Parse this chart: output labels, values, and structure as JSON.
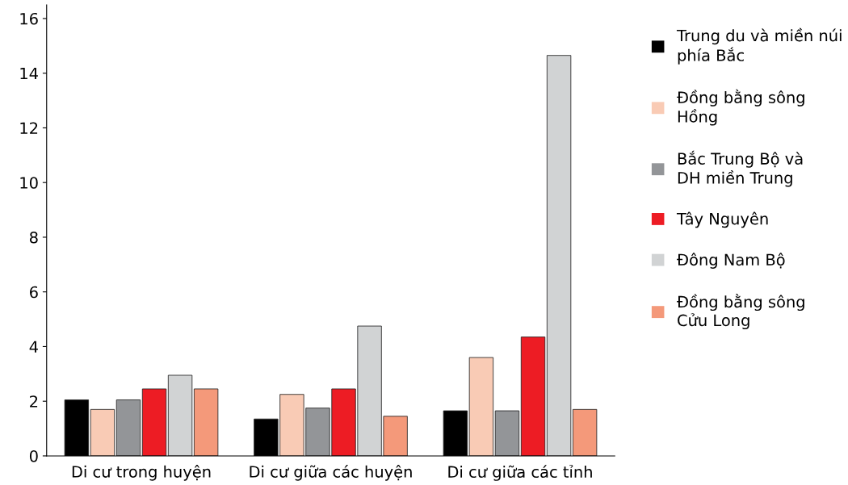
{
  "chart_data": {
    "type": "bar",
    "categories": [
      "Di cư trong huyện",
      "Di cư giữa các huyện",
      "Di cư giữa các tỉnh"
    ],
    "series": [
      {
        "name": "Trung du và miền núi\nphía Bắc",
        "color": "#000000",
        "values": [
          2.05,
          1.35,
          1.65
        ]
      },
      {
        "name": "Đồng bằng sông\nHồng",
        "color": "#f9cbb5",
        "values": [
          1.7,
          2.25,
          3.6
        ]
      },
      {
        "name": "Bắc Trung Bộ và\nDH miền Trung",
        "color": "#939598",
        "values": [
          2.05,
          1.75,
          1.65
        ]
      },
      {
        "name": "Tây Nguyên",
        "color": "#ed1c24",
        "values": [
          2.45,
          2.45,
          4.35
        ]
      },
      {
        "name": "Đông Nam Bộ",
        "color": "#d1d3d4",
        "values": [
          2.95,
          4.75,
          14.65
        ]
      },
      {
        "name": "Đồng bằng sông\nCửu Long",
        "color": "#f4997a",
        "values": [
          2.45,
          1.45,
          1.7
        ]
      }
    ],
    "ylim": [
      0,
      16.5
    ],
    "yticks": [
      0,
      2,
      4,
      6,
      8,
      10,
      12,
      14,
      16
    ],
    "grid": false,
    "legend": "right"
  }
}
